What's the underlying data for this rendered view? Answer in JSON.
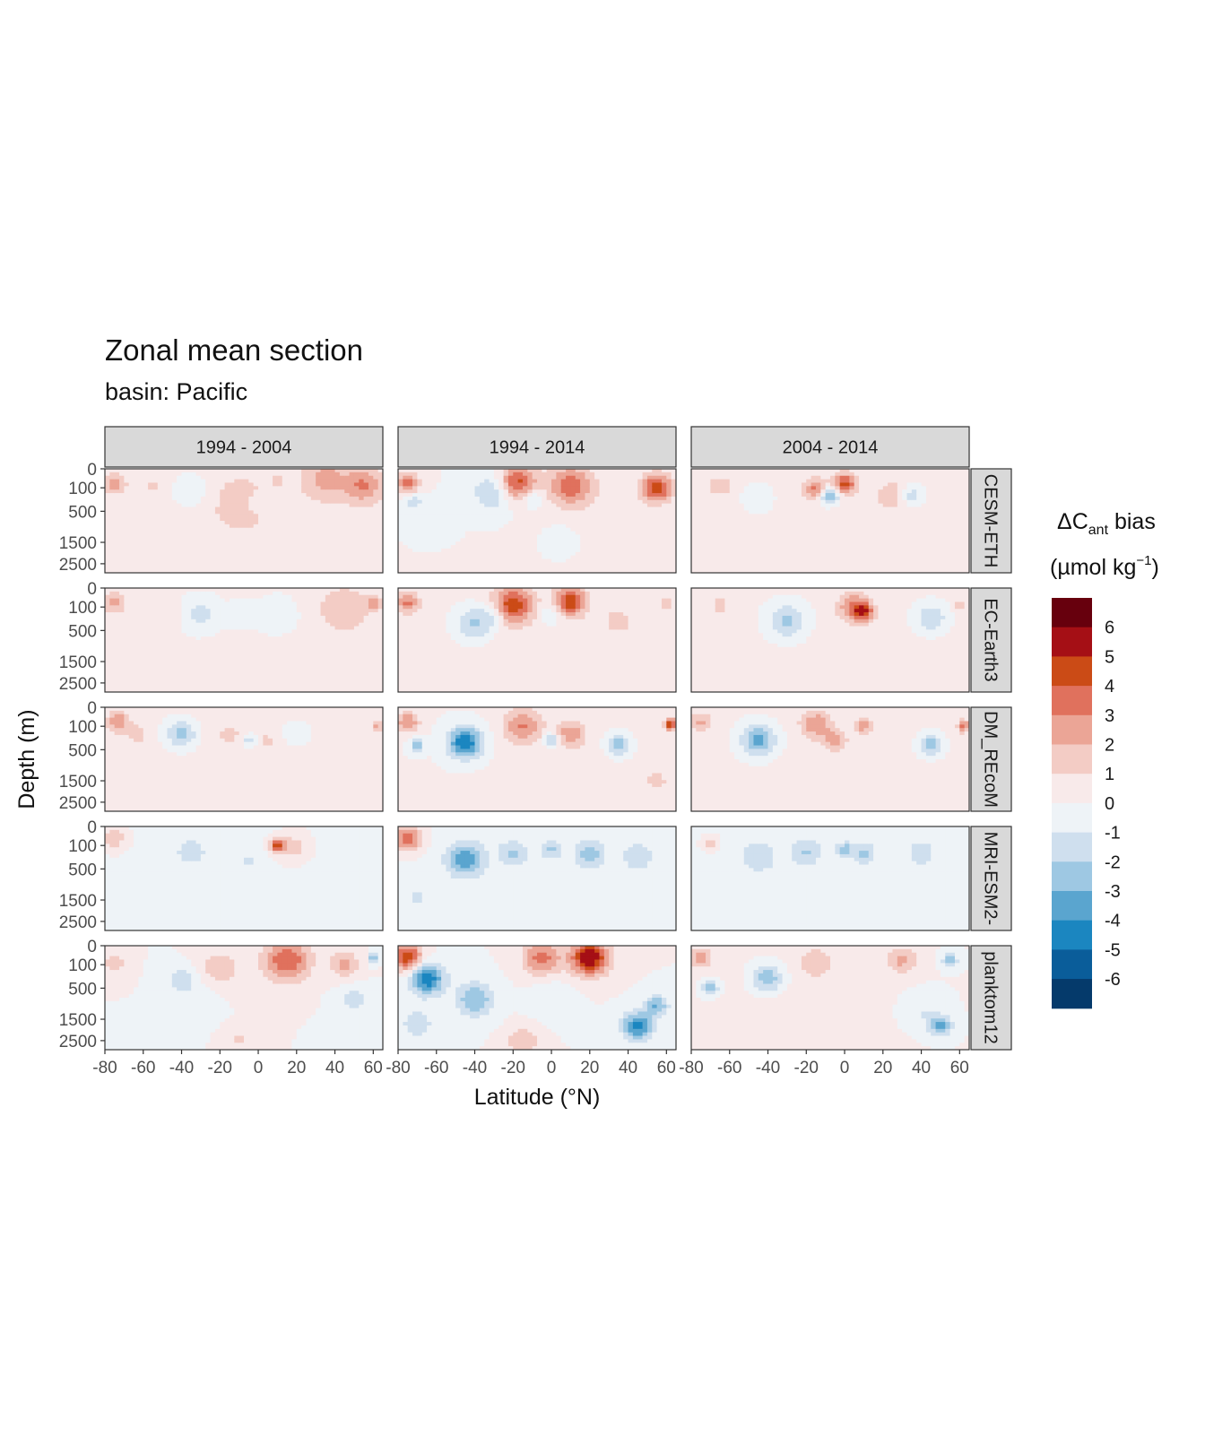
{
  "title": "Zonal mean section",
  "subtitle": "basin: Pacific",
  "chart_data": {
    "type": "heatmap",
    "facet_columns": [
      "1994 - 2004",
      "1994 - 2014",
      "2004 - 2014"
    ],
    "facet_rows": [
      "CESM-ETH",
      "EC-Earth3",
      "FESOM_REcoM",
      "MRI-ESM2",
      "planktom12"
    ],
    "facet_row_visible": [
      "CESM-ETH",
      "EC-Earth3",
      "DM_REcoM",
      "MRI-ESM2-",
      "planktom12"
    ],
    "xlabel": "Latitude (°N)",
    "ylabel": "Depth (m)",
    "x_ticks": [
      -80,
      -60,
      -40,
      -20,
      0,
      20,
      40,
      60
    ],
    "x_tick_labels": [
      "-80",
      "-60",
      "-40",
      "-20",
      "0",
      "20",
      "40",
      "60"
    ],
    "xlim": [
      -80,
      65
    ],
    "y_ticks": [
      0,
      100,
      500,
      1500,
      2500
    ],
    "y_tick_labels": [
      "0",
      "100",
      "500",
      "1500",
      "2500"
    ],
    "ylim": [
      3000,
      0
    ],
    "y_scale": "reversed sqrt",
    "legend": {
      "title_main": "ΔC",
      "title_sub": "ant",
      "title_rest": " bias",
      "unit_a": "(µmol kg",
      "unit_sup": "−1",
      "unit_b": ")",
      "placement": "right",
      "breaks": [
        6,
        5,
        4,
        3,
        2,
        1,
        0,
        -1,
        -2,
        -3,
        -4,
        -5,
        -6
      ],
      "break_labels": [
        "6",
        "5",
        "4",
        "3",
        "2",
        "1",
        "0",
        "-1",
        "-2",
        "-3",
        "-4",
        "-5",
        "-6"
      ],
      "colors": [
        "#67000d",
        "#a50f15",
        "#cb4b16",
        "#e0715d",
        "#eba596",
        "#f3ccc5",
        "#f8eaea",
        "#eef3f7",
        "#cfdfee",
        "#9ec8e3",
        "#5aa5cf",
        "#1b86c0",
        "#0a5d9a",
        "#053a6b"
      ]
    },
    "features": [
      [
        [
          [
            -75,
            60,
            2.5,
            6
          ],
          [
            10,
            40,
            0.6,
            4
          ],
          [
            35,
            25,
            2,
            12
          ],
          [
            -35,
            140,
            -1.2,
            10
          ],
          [
            -55,
            80,
            0.9,
            8
          ],
          [
            0,
            320,
            -0.9,
            5
          ],
          [
            -10,
            280,
            0.9,
            18
          ],
          [
            55,
            80,
            2.8,
            10
          ],
          [
            20,
            1000,
            0.5,
            60
          ],
          [
            -40,
            1800,
            0.3,
            50
          ]
        ],
        [
          [
            -75,
            60,
            2.3,
            6
          ],
          [
            -50,
            200,
            0.8,
            8
          ],
          [
            -30,
            200,
            -1.6,
            10
          ],
          [
            -8,
            200,
            -1.0,
            8
          ],
          [
            10,
            200,
            -1.2,
            10
          ],
          [
            45,
            120,
            1.6,
            14
          ],
          [
            60,
            60,
            2.5,
            4
          ],
          [
            0,
            2000,
            0.3,
            90
          ]
        ],
        [
          [
            -73,
            60,
            2.8,
            6
          ],
          [
            -63,
            200,
            1.5,
            5
          ],
          [
            -40,
            200,
            -2.6,
            8
          ],
          [
            -15,
            200,
            0.9,
            8
          ],
          [
            -5,
            300,
            -1.8,
            4
          ],
          [
            5,
            320,
            1.2,
            4
          ],
          [
            20,
            200,
            -0.6,
            10
          ],
          [
            62,
            100,
            2.3,
            3
          ],
          [
            0,
            2000,
            0.4,
            90
          ]
        ],
        [
          [
            -75,
            40,
            1.8,
            6
          ],
          [
            -35,
            180,
            -1.6,
            8
          ],
          [
            -55,
            400,
            -0.8,
            8
          ],
          [
            10,
            100,
            4.5,
            4
          ],
          [
            18,
            120,
            1.6,
            8
          ],
          [
            -5,
            320,
            -1.0,
            6
          ],
          [
            0,
            2000,
            -0.2,
            90
          ]
        ],
        [
          [
            -75,
            80,
            1.6,
            6
          ],
          [
            -40,
            300,
            -1.6,
            8
          ],
          [
            -30,
            700,
            -0.8,
            10
          ],
          [
            -20,
            150,
            1.6,
            12
          ],
          [
            15,
            60,
            4.0,
            12
          ],
          [
            45,
            100,
            2.2,
            8
          ],
          [
            60,
            40,
            -3.5,
            2
          ],
          [
            50,
            800,
            -1.5,
            8
          ],
          [
            -65,
            2100,
            -0.9,
            6
          ],
          [
            -10,
            2400,
            1.2,
            6
          ],
          [
            40,
            2200,
            -0.9,
            6
          ]
        ]
      ],
      [
        [
          [
            -75,
            60,
            3.5,
            6
          ],
          [
            -18,
            60,
            4.5,
            10
          ],
          [
            10,
            80,
            3.5,
            12
          ],
          [
            -30,
            150,
            -2.5,
            10
          ],
          [
            55,
            100,
            4.5,
            8
          ],
          [
            -72,
            300,
            -2.0,
            4
          ],
          [
            -10,
            220,
            -1.8,
            6
          ],
          [
            5,
            1500,
            -1.2,
            8
          ],
          [
            -60,
            600,
            -0.8,
            8
          ],
          [
            40,
            1400,
            0.4,
            40
          ]
        ],
        [
          [
            -75,
            60,
            3.0,
            6
          ],
          [
            -20,
            80,
            4.5,
            10
          ],
          [
            10,
            50,
            4.5,
            8
          ],
          [
            -40,
            350,
            -2.5,
            10
          ],
          [
            -30,
            200,
            -1.5,
            6
          ],
          [
            0,
            200,
            -1.6,
            6
          ],
          [
            35,
            300,
            1.5,
            6
          ],
          [
            60,
            60,
            2.0,
            3
          ],
          [
            0,
            2000,
            0.5,
            80
          ]
        ],
        [
          [
            -75,
            60,
            3.0,
            6
          ],
          [
            -45,
            350,
            -5.0,
            9
          ],
          [
            -70,
            400,
            -2.5,
            4
          ],
          [
            -15,
            100,
            3.0,
            10
          ],
          [
            0,
            300,
            -3.0,
            4
          ],
          [
            10,
            200,
            2.5,
            8
          ],
          [
            35,
            400,
            -3.0,
            6
          ],
          [
            62,
            80,
            5.0,
            3
          ],
          [
            55,
            1500,
            1.5,
            5
          ],
          [
            20,
            1700,
            0.3,
            60
          ]
        ],
        [
          [
            -75,
            40,
            4.0,
            7
          ],
          [
            -45,
            300,
            -3.5,
            10
          ],
          [
            -20,
            200,
            -2.0,
            8
          ],
          [
            0,
            150,
            -2.0,
            6
          ],
          [
            20,
            200,
            -2.5,
            8
          ],
          [
            45,
            250,
            -1.8,
            8
          ],
          [
            -70,
            1400,
            -1.0,
            8
          ],
          [
            0,
            2000,
            -0.2,
            90
          ]
        ],
        [
          [
            -75,
            40,
            5.0,
            8
          ],
          [
            -5,
            40,
            3.5,
            10
          ],
          [
            20,
            40,
            6.0,
            10
          ],
          [
            -65,
            300,
            -5.0,
            9
          ],
          [
            -40,
            800,
            -3.0,
            10
          ],
          [
            -70,
            1700,
            -1.5,
            10
          ],
          [
            45,
            1800,
            -4.5,
            8
          ],
          [
            55,
            1000,
            -3.0,
            6
          ],
          [
            -15,
            2500,
            2.0,
            8
          ],
          [
            0,
            800,
            -1.0,
            10
          ]
        ]
      ],
      [
        [
          [
            -65,
            80,
            1.6,
            6
          ],
          [
            -15,
            120,
            3.0,
            6
          ],
          [
            0,
            60,
            4.0,
            6
          ],
          [
            -8,
            200,
            -4.0,
            5
          ],
          [
            25,
            200,
            1.6,
            8
          ],
          [
            35,
            200,
            -2.0,
            6
          ],
          [
            -45,
            250,
            -1.0,
            8
          ],
          [
            0,
            2000,
            0.4,
            90
          ]
        ],
        [
          [
            -65,
            80,
            1.2,
            6
          ],
          [
            -30,
            300,
            -2.5,
            10
          ],
          [
            5,
            100,
            3.2,
            8
          ],
          [
            10,
            160,
            3.5,
            5
          ],
          [
            45,
            250,
            -2.2,
            8
          ],
          [
            60,
            80,
            1.6,
            3
          ],
          [
            0,
            2000,
            0.3,
            90
          ]
        ],
        [
          [
            -75,
            60,
            2.0,
            6
          ],
          [
            -45,
            300,
            -3.5,
            9
          ],
          [
            -15,
            80,
            2.6,
            8
          ],
          [
            -5,
            300,
            2.2,
            6
          ],
          [
            10,
            100,
            2.5,
            4
          ],
          [
            45,
            400,
            -3.0,
            6
          ],
          [
            62,
            100,
            3.5,
            3
          ],
          [
            0,
            2000,
            0.3,
            90
          ]
        ],
        [
          [
            -45,
            250,
            -1.6,
            10
          ],
          [
            -20,
            180,
            -1.8,
            8
          ],
          [
            0,
            150,
            -2.6,
            4
          ],
          [
            10,
            200,
            -2.0,
            6
          ],
          [
            40,
            200,
            -1.4,
            8
          ],
          [
            -70,
            80,
            1.6,
            4
          ],
          [
            0,
            2000,
            -0.3,
            90
          ]
        ],
        [
          [
            -75,
            40,
            2.5,
            6
          ],
          [
            -40,
            300,
            -3.0,
            8
          ],
          [
            -15,
            80,
            1.8,
            8
          ],
          [
            30,
            60,
            2.2,
            8
          ],
          [
            55,
            60,
            -2.6,
            4
          ],
          [
            -70,
            500,
            -3.0,
            4
          ],
          [
            50,
            1800,
            -3.2,
            6
          ],
          [
            40,
            1200,
            -1.0,
            10
          ],
          [
            -20,
            1500,
            0.5,
            40
          ]
        ]
      ]
    ]
  }
}
